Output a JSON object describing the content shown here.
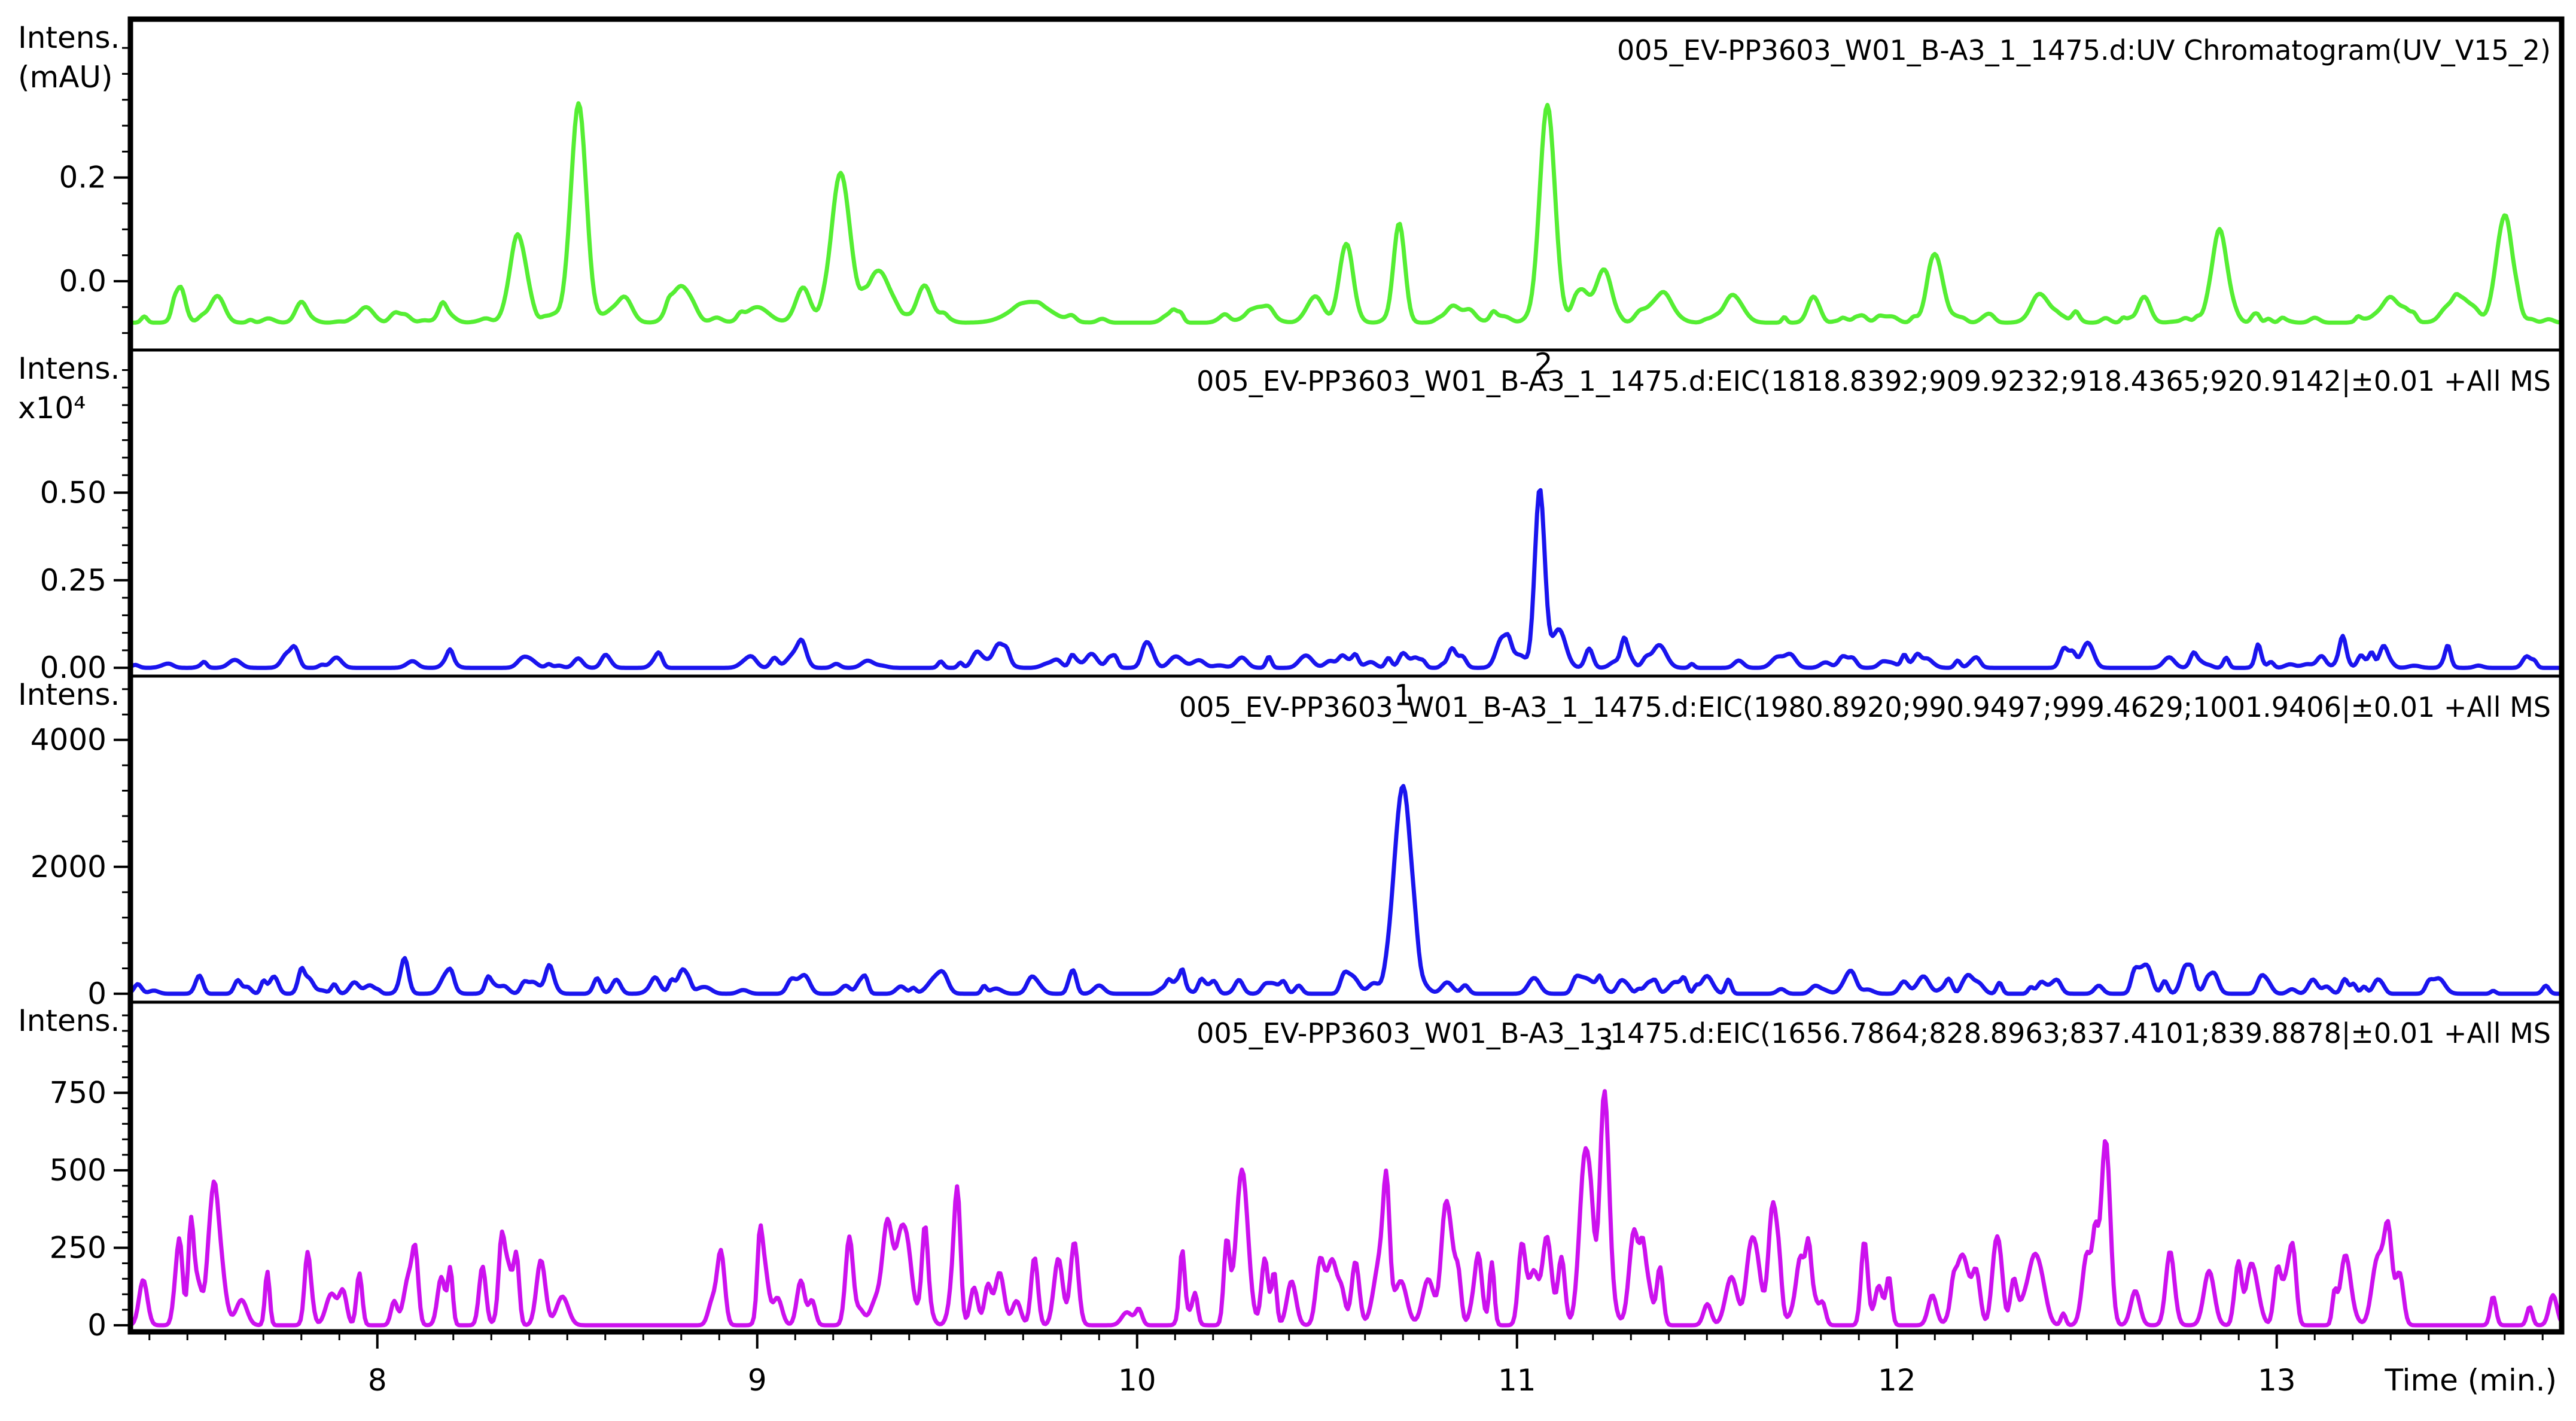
{
  "chart_data": {
    "type": "line",
    "x_axis": {
      "label": "Time (min.)",
      "range": [
        7.35,
        13.75
      ],
      "major_ticks": [
        8,
        9,
        10,
        11,
        12,
        13
      ],
      "tick_labels": [
        "8",
        "9",
        "10",
        "11",
        "12",
        "13"
      ]
    },
    "panels": [
      {
        "id": "uv",
        "title": "005_EV-PP3603_W01_B-A3_1_1475.d:UV Chromatogram(UV_V15_2)",
        "ylabel_lines": [
          "Intens.",
          "(mAU)"
        ],
        "y_range": [
          -0.12,
          0.48
        ],
        "y_ticks": [
          0.0,
          0.2
        ],
        "y_tick_labels": [
          "0.0",
          "0.2"
        ],
        "y_minor_step": 0.05,
        "color": "#55ee33",
        "baseline": -0.08,
        "noise_amp": 0.012,
        "noise_seed": 3,
        "peaks": [
          [
            7.48,
            0.05,
            0.015
          ],
          [
            7.58,
            0.05,
            0.018
          ],
          [
            7.8,
            0.04,
            0.015
          ],
          [
            7.97,
            0.03,
            0.02
          ],
          [
            8.18,
            0.02,
            0.02
          ],
          [
            8.37,
            0.16,
            0.022
          ],
          [
            8.53,
            0.42,
            0.02
          ],
          [
            8.65,
            0.05,
            0.02
          ],
          [
            8.8,
            0.07,
            0.025
          ],
          [
            9.0,
            0.03,
            0.03
          ],
          [
            9.12,
            0.06,
            0.02
          ],
          [
            9.22,
            0.28,
            0.025
          ],
          [
            9.32,
            0.1,
            0.03
          ],
          [
            9.44,
            0.07,
            0.02
          ],
          [
            9.72,
            0.04,
            0.05
          ],
          [
            10.32,
            0.03,
            0.03
          ],
          [
            10.47,
            0.05,
            0.02
          ],
          [
            10.55,
            0.15,
            0.018
          ],
          [
            10.69,
            0.18,
            0.015
          ],
          [
            10.85,
            0.02,
            0.03
          ],
          [
            11.08,
            0.42,
            0.02
          ],
          [
            11.17,
            0.06,
            0.02
          ],
          [
            11.23,
            0.1,
            0.02
          ],
          [
            11.38,
            0.05,
            0.03
          ],
          [
            11.57,
            0.05,
            0.025
          ],
          [
            11.78,
            0.05,
            0.015
          ],
          [
            12.1,
            0.11,
            0.02
          ],
          [
            12.38,
            0.05,
            0.025
          ],
          [
            12.65,
            0.04,
            0.015
          ],
          [
            12.85,
            0.17,
            0.02
          ],
          [
            13.3,
            0.04,
            0.03
          ],
          [
            13.48,
            0.05,
            0.03
          ],
          [
            13.6,
            0.2,
            0.022
          ]
        ]
      },
      {
        "id": "eic-1818",
        "title": "005_EV-PP3603_W01_B-A3_1_1475.d:EIC(1818.8392;909.9232;918.4365;920.9142|±0.01 +All MS",
        "ylabel_lines": [
          "Intens.",
          "x10⁴"
        ],
        "y_range": [
          -0.005,
          0.87
        ],
        "y_ticks": [
          0.0,
          0.25,
          0.5
        ],
        "y_tick_labels": [
          "0.00",
          "0.25",
          "0.50"
        ],
        "y_minor_step": 0.05,
        "color": "#1a14ee",
        "baseline": 0.0,
        "noise_amp": 0.035,
        "noise_seed": 7,
        "annotation": {
          "label": "2",
          "x": 11.07,
          "y": 0.84
        },
        "peaks": [
          [
            11.06,
            0.51,
            0.013
          ],
          [
            11.11,
            0.11,
            0.018
          ],
          [
            10.83,
            0.05,
            0.01
          ],
          [
            9.88,
            0.04,
            0.015
          ]
        ]
      },
      {
        "id": "eic-1980",
        "title": "005_EV-PP3603_W01_B-A3_1_1475.d:EIC(1980.8920;990.9497;999.4629;1001.9406|±0.01 +All MS",
        "ylabel_lines": [
          "Intens."
        ],
        "y_range": [
          -30,
          4800
        ],
        "y_ticks": [
          0,
          2000,
          4000
        ],
        "y_tick_labels": [
          "0",
          "2000",
          "4000"
        ],
        "y_minor_step": 400,
        "color": "#1a14ee",
        "baseline": 0,
        "noise_amp": 230,
        "noise_seed": 11,
        "annotation": {
          "label": "1",
          "x": 10.7,
          "y": 4550
        },
        "peaks": [
          [
            10.7,
            3200,
            0.022
          ],
          [
            9.47,
            250,
            0.02
          ],
          [
            11.5,
            280,
            0.015
          ],
          [
            7.73,
            250,
            0.01
          ]
        ]
      },
      {
        "id": "eic-1656",
        "title": "005_EV-PP3603_W01_B-A3_1_1475.d:EIC(1656.7864;828.8963;837.4101;839.8878|±0.01 +All MS",
        "ylabel_lines": [
          "Intens."
        ],
        "y_range": [
          0,
          1000
        ],
        "y_ticks": [
          0,
          250,
          500,
          750
        ],
        "y_tick_labels": [
          "0",
          "250",
          "500",
          "750"
        ],
        "y_minor_step": 50,
        "color": "#cc11ee",
        "baseline": 0,
        "noise_amp": 240,
        "noise_seed": 19,
        "annotation": {
          "label": "3",
          "x": 11.23,
          "y": 890
        },
        "peaks": [
          [
            11.23,
            740,
            0.012
          ],
          [
            11.18,
            560,
            0.015
          ],
          [
            11.08,
            260,
            0.012
          ],
          [
            12.72,
            180,
            0.012
          ],
          [
            12.5,
            180,
            0.012
          ]
        ]
      }
    ]
  }
}
